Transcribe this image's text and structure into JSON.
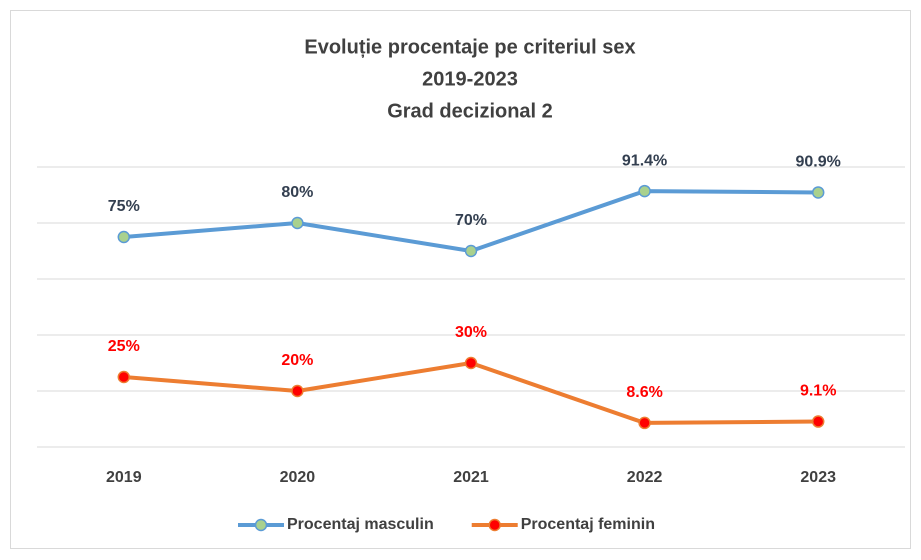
{
  "chart_data": {
    "type": "line",
    "title": [
      "Evoluție procentaje pe criteriul sex",
      "2019-2023",
      "Grad decizional 2"
    ],
    "categories": [
      "2019",
      "2020",
      "2021",
      "2022",
      "2023"
    ],
    "series": [
      {
        "name": "Procentaj masculin",
        "color": "#5b9bd5",
        "marker_color": "#a9d18e",
        "label_color": "#333f50",
        "values": [
          75,
          80,
          70,
          91.4,
          90.9
        ],
        "value_labels": [
          "75%",
          "80%",
          "70%",
          "91.4%",
          "90.9%"
        ]
      },
      {
        "name": "Procentaj feminin",
        "color": "#ed7d31",
        "marker_color": "#ff0000",
        "label_color": "#ff0000",
        "values": [
          25,
          20,
          30,
          8.6,
          9.1
        ],
        "value_labels": [
          "25%",
          "20%",
          "30%",
          "8.6%",
          "9.1%"
        ]
      }
    ],
    "ylim": [
      0,
      100
    ],
    "yticks": [
      0,
      20,
      40,
      60,
      80,
      100
    ],
    "grid": true,
    "legend": "bottom"
  }
}
